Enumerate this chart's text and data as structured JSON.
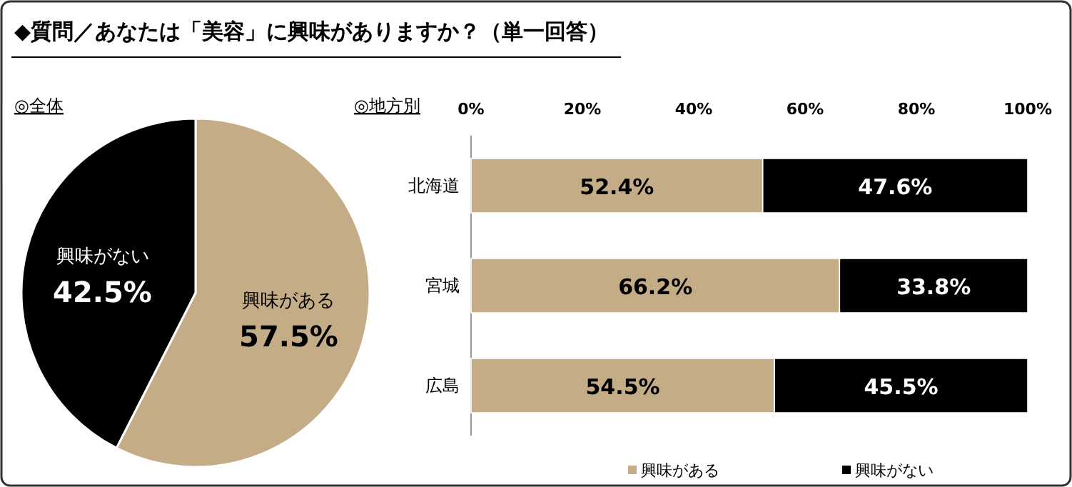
{
  "chart_data": [
    {
      "type": "pie",
      "title": "◆質問／あなたは「美容」に興味がありますか？（単一回答）",
      "subtitle": "◎全体",
      "categories": [
        "興味がある",
        "興味がない"
      ],
      "values": [
        57.5,
        42.5
      ],
      "colors": [
        "#c4ad86",
        "#000000"
      ],
      "value_labels": [
        "57.5%",
        "42.5%"
      ]
    },
    {
      "type": "bar",
      "subtitle": "◎地方別",
      "orientation": "horizontal",
      "stacked": true,
      "categories": [
        "北海道",
        "宮城",
        "広島"
      ],
      "series": [
        {
          "name": "興味がある",
          "color": "#c4ad86",
          "values": [
            52.4,
            66.2,
            54.5
          ],
          "value_labels": [
            "52.4%",
            "66.2%",
            "54.5%"
          ]
        },
        {
          "name": "興味がない",
          "color": "#000000",
          "values": [
            47.6,
            33.8,
            45.5
          ],
          "value_labels": [
            "47.6%",
            "33.8%",
            "45.5%"
          ]
        }
      ],
      "xlim": [
        0,
        100
      ],
      "xticks": [
        {
          "value": 0,
          "label": "0%"
        },
        {
          "value": 20,
          "label": "20%"
        },
        {
          "value": 40,
          "label": "40%"
        },
        {
          "value": 60,
          "label": "60%"
        },
        {
          "value": 80,
          "label": "80%"
        },
        {
          "value": 100,
          "label": "100%"
        }
      ],
      "legend": "bottom"
    }
  ]
}
